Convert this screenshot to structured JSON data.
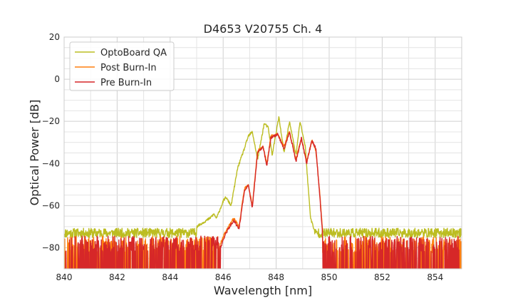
{
  "chart_data": {
    "type": "line",
    "title": "D4653 V20755 Ch. 4",
    "xlabel": "Wavelength [nm]",
    "ylabel": "Optical Power [dB]",
    "xlim": [
      840,
      855
    ],
    "ylim": [
      -90,
      20
    ],
    "xticks": [
      "840",
      "842",
      "844",
      "846",
      "848",
      "850",
      "852",
      "854"
    ],
    "yticks": [
      "20",
      "0",
      "−20",
      "−40",
      "−60",
      "−80"
    ],
    "grid": true,
    "legend_position": "top-left",
    "noise_floor": {
      "optoboard_qa": -73,
      "burn_in": -80
    },
    "series": [
      {
        "name": "OptoBoard QA",
        "color": "#bcbd22",
        "x": [
          845.0,
          845.5,
          845.65,
          845.75,
          846.0,
          846.1,
          846.3,
          846.55,
          846.8,
          846.95,
          847.1,
          847.3,
          847.55,
          847.7,
          847.85,
          848.1,
          848.3,
          848.5,
          848.75,
          848.9,
          849.1,
          849.2,
          849.3,
          849.45
        ],
        "y": [
          -70,
          -66,
          -64,
          -66,
          -58,
          -56,
          -60,
          -42,
          -33,
          -27,
          -25,
          -38,
          -21,
          -23,
          -36,
          -18,
          -35,
          -20,
          -36,
          -20,
          -32,
          -50,
          -66,
          -72
        ]
      },
      {
        "name": "Post Burn-In",
        "color": "#ff7f0e",
        "x": [
          845.9,
          846.1,
          846.4,
          846.6,
          846.8,
          846.95,
          847.1,
          847.3,
          847.5,
          847.65,
          847.8,
          848.05,
          848.3,
          848.5,
          848.75,
          848.95,
          849.15,
          849.35,
          849.5,
          849.65,
          849.75
        ],
        "y": [
          -78,
          -72,
          -66,
          -70,
          -52,
          -50,
          -60,
          -34,
          -32,
          -40,
          -27,
          -26,
          -32,
          -25,
          -38,
          -28,
          -39,
          -29,
          -34,
          -55,
          -72
        ]
      },
      {
        "name": "Pre Burn-In",
        "color": "#d62728",
        "x": [
          845.9,
          846.1,
          846.4,
          846.6,
          846.8,
          846.95,
          847.1,
          847.3,
          847.5,
          847.65,
          847.8,
          848.05,
          848.3,
          848.5,
          848.75,
          848.95,
          849.15,
          849.35,
          849.5,
          849.65,
          849.75
        ],
        "y": [
          -80,
          -73,
          -67,
          -71,
          -53,
          -50,
          -61,
          -35,
          -32,
          -41,
          -28,
          -26,
          -33,
          -25,
          -39,
          -28,
          -40,
          -29,
          -33,
          -56,
          -73
        ]
      }
    ]
  }
}
